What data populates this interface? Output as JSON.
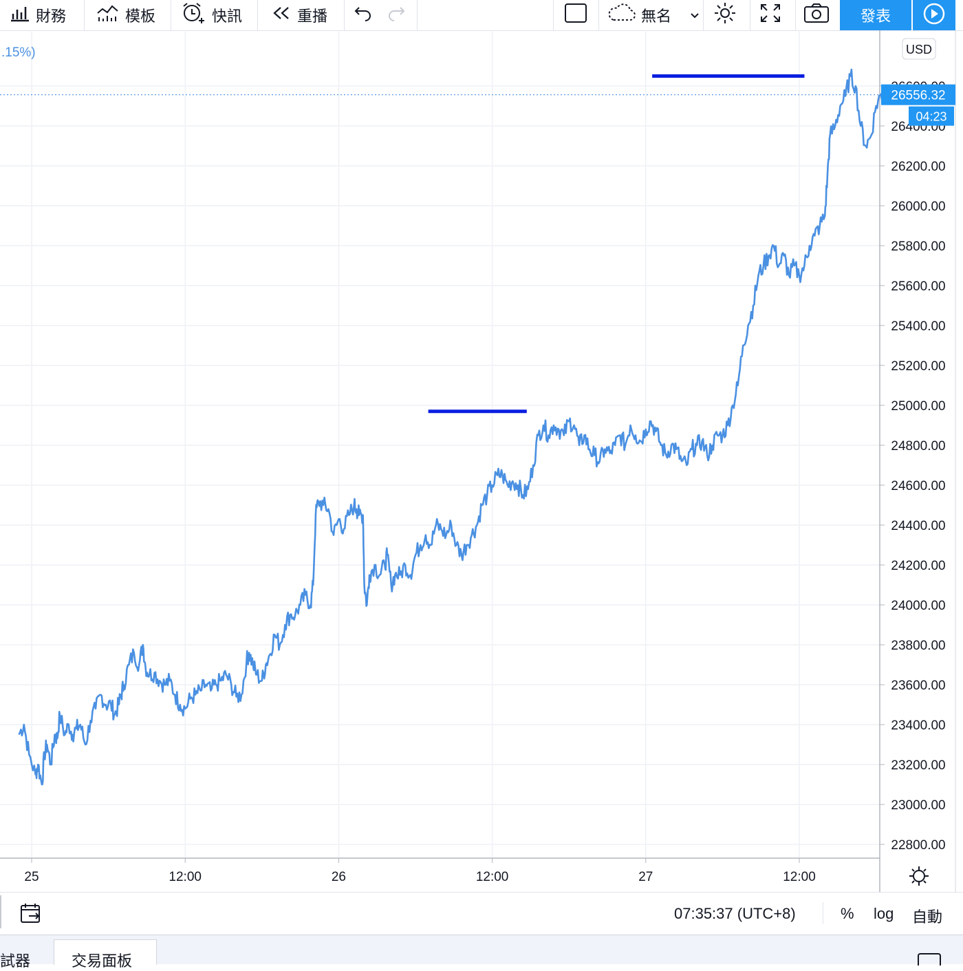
{
  "toolbar": {
    "financials_label": "財務",
    "templates_label": "模板",
    "alerts_label": "快訊",
    "replay_label": "重播",
    "layout_name": "無名",
    "publish_label": "發表"
  },
  "header": {
    "change_fragment": ".15%)"
  },
  "price_axis": {
    "currency": "USD",
    "last_price_label": "26556.32",
    "countdown_label": "04:23"
  },
  "bottom": {
    "timestamp": "07:35:37 (UTC+8)",
    "percent_label": "%",
    "log_label": "log",
    "auto_label": "自動"
  },
  "tabs": {
    "tab1": "試器",
    "tab2": "交易面板"
  },
  "colors": {
    "line": "#4a90e2",
    "level_lines": "#0a1fe0",
    "accent": "#2196f3",
    "grid": "#eef1f6"
  },
  "chart_data": {
    "type": "line",
    "title": "",
    "xlabel": "",
    "ylabel": "",
    "ylim": [
      22700,
      26700
    ],
    "x_ticks": [
      "25",
      "12:00",
      "26",
      "12:00",
      "27",
      "12:00"
    ],
    "y_ticks": [
      22800,
      23000,
      23200,
      23400,
      23600,
      23800,
      24000,
      24200,
      24400,
      24600,
      24800,
      25000,
      25200,
      25400,
      25600,
      25800,
      26000,
      26200,
      26400,
      26600
    ],
    "y_tick_labels": [
      "22800.00",
      "23000.00",
      "23200.00",
      "23400.00",
      "23600.00",
      "23800.00",
      "24000.00",
      "24200.00",
      "24400.00",
      "24600.00",
      "24800.00",
      "25000.00",
      "25200.00",
      "25400.00",
      "25600.00",
      "25800.00",
      "26000.00",
      "26200.00",
      "26400.00",
      "26600.00"
    ],
    "x_unit": "hours since 25 00:00",
    "series": [
      {
        "points": [
          [
            -1.0,
            23350
          ],
          [
            -0.6,
            23400
          ],
          [
            -0.2,
            23250
          ],
          [
            0.3,
            23150
          ],
          [
            0.5,
            23200
          ],
          [
            0.8,
            23100
          ],
          [
            1.0,
            23250
          ],
          [
            1.2,
            23300
          ],
          [
            1.5,
            23200
          ],
          [
            1.8,
            23350
          ],
          [
            2.0,
            23330
          ],
          [
            2.2,
            23450
          ],
          [
            2.6,
            23350
          ],
          [
            2.9,
            23400
          ],
          [
            3.2,
            23350
          ],
          [
            3.5,
            23380
          ],
          [
            3.8,
            23400
          ],
          [
            4.2,
            23300
          ],
          [
            4.6,
            23420
          ],
          [
            5.0,
            23480
          ],
          [
            5.4,
            23550
          ],
          [
            5.8,
            23500
          ],
          [
            6.2,
            23500
          ],
          [
            6.5,
            23450
          ],
          [
            6.8,
            23500
          ],
          [
            7.0,
            23550
          ],
          [
            7.2,
            23600
          ],
          [
            7.6,
            23700
          ],
          [
            8.0,
            23760
          ],
          [
            8.4,
            23700
          ],
          [
            8.7,
            23800
          ],
          [
            8.9,
            23690
          ],
          [
            9.2,
            23650
          ],
          [
            9.6,
            23660
          ],
          [
            10.0,
            23620
          ],
          [
            10.4,
            23600
          ],
          [
            10.8,
            23620
          ],
          [
            11.2,
            23550
          ],
          [
            11.6,
            23500
          ],
          [
            12.0,
            23480
          ],
          [
            12.4,
            23530
          ],
          [
            12.8,
            23550
          ],
          [
            13.2,
            23570
          ],
          [
            13.6,
            23600
          ],
          [
            14.0,
            23570
          ],
          [
            14.4,
            23600
          ],
          [
            14.8,
            23620
          ],
          [
            15.2,
            23650
          ],
          [
            15.6,
            23600
          ],
          [
            16.0,
            23540
          ],
          [
            16.4,
            23550
          ],
          [
            16.8,
            23720
          ],
          [
            17.0,
            23760
          ],
          [
            17.3,
            23700
          ],
          [
            17.6,
            23650
          ],
          [
            18.0,
            23620
          ],
          [
            18.3,
            23700
          ],
          [
            18.6,
            23750
          ],
          [
            19.0,
            23850
          ],
          [
            19.4,
            23800
          ],
          [
            19.8,
            23900
          ],
          [
            20.2,
            23950
          ],
          [
            20.6,
            23950
          ],
          [
            21.0,
            24000
          ],
          [
            21.4,
            24050
          ],
          [
            21.8,
            24000
          ],
          [
            22.0,
            24100
          ],
          [
            22.2,
            24450
          ],
          [
            22.4,
            24520
          ],
          [
            22.8,
            24500
          ],
          [
            23.2,
            24480
          ],
          [
            23.6,
            24350
          ],
          [
            24.0,
            24430
          ],
          [
            24.4,
            24380
          ],
          [
            24.8,
            24450
          ],
          [
            25.2,
            24500
          ],
          [
            25.4,
            24480
          ],
          [
            25.6,
            24450
          ],
          [
            25.9,
            24450
          ],
          [
            26.0,
            24100
          ],
          [
            26.2,
            24000
          ],
          [
            26.4,
            24150
          ],
          [
            26.8,
            24200
          ],
          [
            27.2,
            24150
          ],
          [
            27.6,
            24200
          ],
          [
            27.8,
            24250
          ],
          [
            28.1,
            24100
          ],
          [
            28.4,
            24150
          ],
          [
            28.8,
            24150
          ],
          [
            29.2,
            24200
          ],
          [
            29.6,
            24150
          ],
          [
            30.0,
            24250
          ],
          [
            30.4,
            24300
          ],
          [
            30.8,
            24350
          ],
          [
            31.2,
            24300
          ],
          [
            31.6,
            24400
          ],
          [
            32.0,
            24380
          ],
          [
            32.4,
            24350
          ],
          [
            32.8,
            24400
          ],
          [
            33.2,
            24300
          ],
          [
            33.6,
            24250
          ],
          [
            34.0,
            24300
          ],
          [
            34.4,
            24350
          ],
          [
            34.8,
            24400
          ],
          [
            35.2,
            24500
          ],
          [
            35.6,
            24550
          ],
          [
            36.0,
            24600
          ],
          [
            36.4,
            24650
          ],
          [
            36.8,
            24650
          ],
          [
            37.2,
            24600
          ],
          [
            37.6,
            24620
          ],
          [
            38.0,
            24600
          ],
          [
            38.4,
            24550
          ],
          [
            38.8,
            24580
          ],
          [
            39.2,
            24700
          ],
          [
            39.6,
            24850
          ],
          [
            40.0,
            24900
          ],
          [
            40.4,
            24850
          ],
          [
            40.8,
            24900
          ],
          [
            41.2,
            24880
          ],
          [
            41.6,
            24850
          ],
          [
            42.0,
            24920
          ],
          [
            42.4,
            24900
          ],
          [
            42.8,
            24800
          ],
          [
            43.2,
            24850
          ],
          [
            43.6,
            24780
          ],
          [
            44.0,
            24750
          ],
          [
            44.4,
            24720
          ],
          [
            44.8,
            24780
          ],
          [
            45.2,
            24760
          ],
          [
            45.6,
            24800
          ],
          [
            46.0,
            24850
          ],
          [
            46.4,
            24800
          ],
          [
            46.8,
            24900
          ],
          [
            47.2,
            24850
          ],
          [
            47.6,
            24820
          ],
          [
            48.0,
            24880
          ],
          [
            48.4,
            24920
          ],
          [
            48.8,
            24870
          ],
          [
            49.2,
            24800
          ],
          [
            49.6,
            24750
          ],
          [
            50.0,
            24800
          ],
          [
            50.4,
            24780
          ],
          [
            50.8,
            24720
          ],
          [
            51.2,
            24700
          ],
          [
            51.6,
            24780
          ],
          [
            52.0,
            24800
          ],
          [
            52.4,
            24820
          ],
          [
            52.8,
            24750
          ],
          [
            53.2,
            24800
          ],
          [
            53.6,
            24850
          ],
          [
            54.0,
            24850
          ],
          [
            54.4,
            24900
          ],
          [
            54.8,
            25000
          ],
          [
            55.2,
            25100
          ],
          [
            55.6,
            25300
          ],
          [
            56.0,
            25400
          ],
          [
            56.4,
            25500
          ],
          [
            56.8,
            25650
          ],
          [
            57.2,
            25700
          ],
          [
            57.6,
            25750
          ],
          [
            58.0,
            25800
          ],
          [
            58.4,
            25700
          ],
          [
            58.8,
            25750
          ],
          [
            59.2,
            25650
          ],
          [
            59.6,
            25700
          ],
          [
            60.0,
            25650
          ],
          [
            60.4,
            25700
          ],
          [
            60.8,
            25800
          ],
          [
            61.2,
            25850
          ],
          [
            61.6,
            25900
          ],
          [
            62.0,
            25950
          ],
          [
            62.2,
            26150
          ],
          [
            62.4,
            26350
          ],
          [
            62.8,
            26400
          ],
          [
            63.2,
            26500
          ],
          [
            63.6,
            26550
          ],
          [
            64.0,
            26650
          ],
          [
            64.4,
            26600
          ],
          [
            64.8,
            26400
          ],
          [
            65.2,
            26300
          ],
          [
            65.6,
            26350
          ],
          [
            66.0,
            26500
          ],
          [
            66.4,
            26560
          ],
          [
            66.6,
            26556.32
          ]
        ]
      }
    ],
    "annotations": [
      {
        "type": "horizontal_level",
        "value": 24970,
        "x_from": 31.0,
        "x_to": 38.7
      },
      {
        "type": "horizontal_level",
        "value": 26650,
        "x_from": 48.5,
        "x_to": 60.4
      }
    ],
    "last_price": 26556.32,
    "grid": true,
    "scale": "auto"
  }
}
